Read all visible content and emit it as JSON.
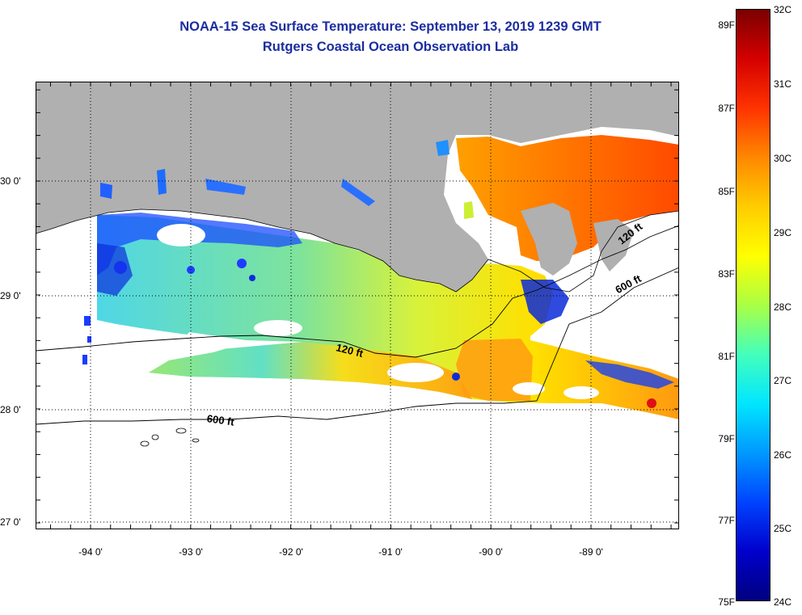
{
  "header": {
    "title_line1": "NOAA-15 Sea Surface Temperature:  September 13, 2019 1239 GMT",
    "title_line2": "Rutgers Coastal Ocean Observation Lab"
  },
  "map": {
    "latitude_labels": [
      "30 0'",
      "29 0'",
      "28 0'",
      "27 0'"
    ],
    "longitude_labels": [
      "-94 0'",
      "-93 0'",
      "-92 0'",
      "-91 0'",
      "-90 0'",
      "-89 0'"
    ],
    "contour_labels": {
      "c120_east": "120 ft",
      "c600_east": "600 ft",
      "c120_mid": "120 ft",
      "c600_west": "600 ft"
    },
    "colors": {
      "land": "#b0b0b0",
      "no_data": "#ffffff",
      "grid": "#000000"
    }
  },
  "colorbar": {
    "fahrenheit_labels": [
      "89F",
      "87F",
      "85F",
      "83F",
      "81F",
      "79F",
      "77F",
      "75F"
    ],
    "celsius_labels": [
      "32C",
      "31C",
      "30C",
      "29C",
      "28C",
      "27C",
      "26C",
      "25C",
      "24C"
    ],
    "gradient_colors": [
      "#7a0000",
      "#d40000",
      "#ff3300",
      "#ff8800",
      "#ffcc00",
      "#ffff00",
      "#aaff44",
      "#44ffbb",
      "#00e6ff",
      "#0099ff",
      "#0044ff",
      "#0000cc",
      "#000080"
    ]
  }
}
